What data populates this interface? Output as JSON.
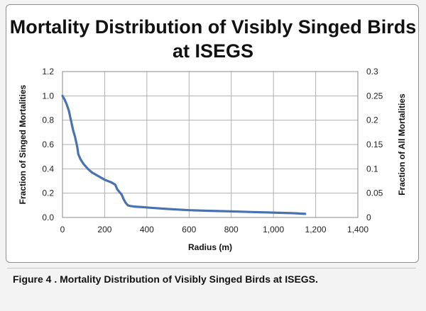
{
  "chart_data": {
    "type": "line",
    "title": "Mortality Distribution of Visibly Singed Birds at ISEGS",
    "xlabel": "Radius (m)",
    "ylabel": "Fraction of Singed Mortalities",
    "y2label": "Fraction of All Mortalities",
    "xlim": [
      0,
      1400
    ],
    "ylim": [
      0,
      1.2
    ],
    "y2lim": [
      0,
      0.3
    ],
    "x_ticks": [
      "0",
      "200",
      "400",
      "600",
      "800",
      "1,000",
      "1,200",
      "1,400"
    ],
    "y_ticks": [
      "0.0",
      "0.2",
      "0.4",
      "0.6",
      "0.8",
      "1.0",
      "1.2"
    ],
    "y2_ticks": [
      "0",
      "0.05",
      "0.1",
      "0.15",
      "0.2",
      "0.25",
      "0.3"
    ],
    "grid": true,
    "legend": false,
    "series_color": "#4a72b0",
    "series": [
      {
        "x": [
          0,
          10,
          20,
          30,
          40,
          50,
          60,
          70,
          75,
          85,
          100,
          120,
          140,
          160,
          180,
          200,
          215,
          230,
          250,
          260,
          280,
          290,
          300,
          310,
          320,
          340,
          380,
          420,
          500,
          600,
          700,
          800,
          900,
          1000,
          1100,
          1150
        ],
        "y": [
          1.0,
          0.97,
          0.93,
          0.88,
          0.8,
          0.72,
          0.66,
          0.58,
          0.52,
          0.48,
          0.44,
          0.4,
          0.37,
          0.35,
          0.33,
          0.31,
          0.3,
          0.29,
          0.27,
          0.23,
          0.19,
          0.15,
          0.12,
          0.1,
          0.095,
          0.09,
          0.085,
          0.08,
          0.07,
          0.06,
          0.055,
          0.05,
          0.045,
          0.04,
          0.035,
          0.03
        ]
      }
    ]
  },
  "caption": "Figure 4 . Mortality Distribution of Visibly Singed Birds at ISEGS."
}
